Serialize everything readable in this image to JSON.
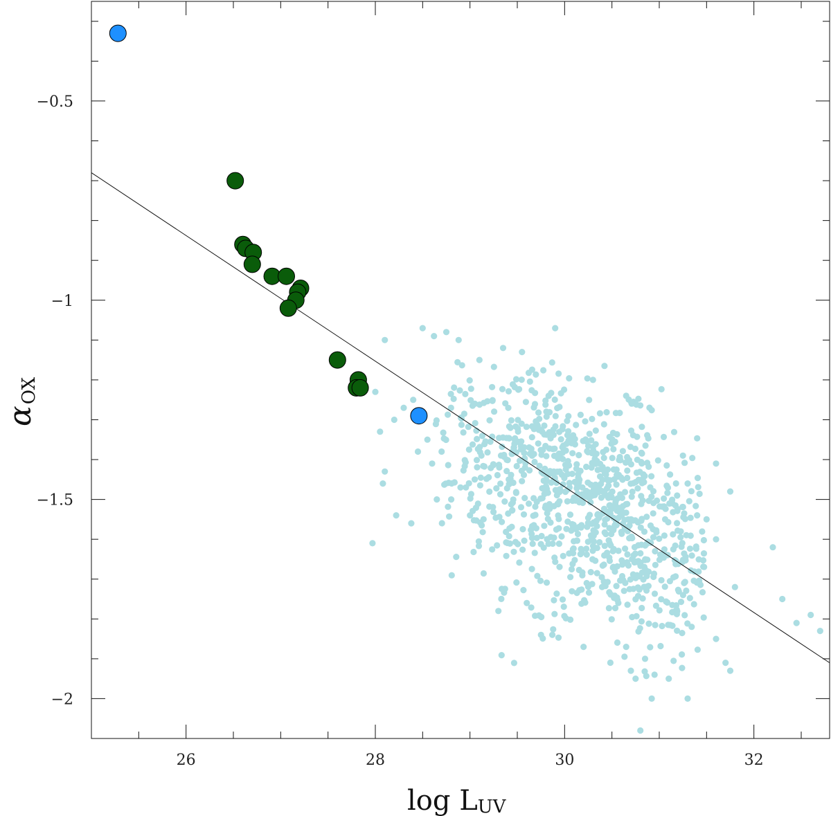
{
  "chart_data": {
    "type": "scatter",
    "xlabel": "log L",
    "xlabel_sub": "UV",
    "ylabel": "α",
    "ylabel_sub": "OX",
    "xlim": [
      25.0,
      32.8
    ],
    "ylim": [
      -2.1,
      -0.25
    ],
    "xticks_major": [
      26,
      28,
      30,
      32
    ],
    "xtick_labels": [
      "26",
      "28",
      "30",
      "32"
    ],
    "xticks_minor": [
      25.5,
      26.5,
      27,
      27.5,
      28.5,
      29,
      29.5,
      30.5,
      31,
      31.5,
      32.5
    ],
    "yticks_major": [
      -2,
      -1.5,
      -1,
      -0.5
    ],
    "ytick_labels": [
      "−2",
      "−1.5",
      "−1",
      "−0.5"
    ],
    "yticks_minor": [
      -1.9,
      -1.8,
      -1.7,
      -1.6,
      -1.4,
      -1.3,
      -1.2,
      -1.1,
      -0.9,
      -0.8,
      -0.7,
      -0.6,
      -0.4,
      -0.3
    ],
    "grid": false,
    "fit_line": {
      "x": [
        25.0,
        32.8
      ],
      "y": [
        -0.68,
        -1.91
      ]
    },
    "series": [
      {
        "marker": "large-circle",
        "color": "#0a5c0a",
        "points": [
          [
            26.52,
            -0.7
          ],
          [
            26.6,
            -0.86
          ],
          [
            26.63,
            -0.87
          ],
          [
            26.71,
            -0.88
          ],
          [
            26.7,
            -0.91
          ],
          [
            26.91,
            -0.94
          ],
          [
            27.06,
            -0.94
          ],
          [
            27.21,
            -0.97
          ],
          [
            27.18,
            -0.98
          ],
          [
            27.16,
            -1.0
          ],
          [
            27.08,
            -1.02
          ],
          [
            27.6,
            -1.15
          ],
          [
            27.82,
            -1.2
          ],
          [
            27.8,
            -1.22
          ],
          [
            27.84,
            -1.22
          ]
        ]
      },
      {
        "marker": "large-circle",
        "color": "#1e90ff",
        "points": [
          [
            25.28,
            -0.33
          ],
          [
            28.46,
            -1.29
          ]
        ]
      },
      {
        "marker": "small-dot",
        "color": "#abdde2",
        "points": [
          [
            28.5,
            -1.07
          ],
          [
            28.62,
            -1.09
          ],
          [
            28.75,
            -1.08
          ],
          [
            28.88,
            -1.1
          ],
          [
            29.1,
            -1.15
          ],
          [
            29.35,
            -1.12
          ],
          [
            29.55,
            -1.13
          ],
          [
            29.9,
            -1.07
          ],
          [
            30.3,
            -1.2
          ],
          [
            30.65,
            -1.24
          ],
          [
            28.1,
            -1.1
          ],
          [
            28.4,
            -1.25
          ],
          [
            28.3,
            -1.27
          ],
          [
            28.0,
            -1.23
          ],
          [
            28.2,
            -1.3
          ],
          [
            28.05,
            -1.33
          ],
          [
            28.45,
            -1.38
          ],
          [
            28.55,
            -1.35
          ],
          [
            28.7,
            -1.38
          ],
          [
            28.65,
            -1.5
          ],
          [
            28.9,
            -1.47
          ],
          [
            29.05,
            -1.45
          ],
          [
            29.0,
            -1.54
          ],
          [
            28.6,
            -1.41
          ],
          [
            28.1,
            -1.43
          ],
          [
            28.08,
            -1.46
          ],
          [
            28.22,
            -1.54
          ],
          [
            28.38,
            -1.56
          ],
          [
            27.97,
            -1.61
          ],
          [
            28.8,
            -1.27
          ],
          [
            29.3,
            -1.78
          ],
          [
            29.6,
            -1.76
          ],
          [
            29.75,
            -1.84
          ],
          [
            29.87,
            -1.84
          ],
          [
            30.2,
            -1.87
          ],
          [
            30.65,
            -1.87
          ],
          [
            30.85,
            -1.9
          ],
          [
            30.7,
            -1.93
          ],
          [
            30.75,
            -1.95
          ],
          [
            30.95,
            -1.94
          ],
          [
            31.1,
            -1.95
          ],
          [
            30.92,
            -2.0
          ],
          [
            30.8,
            -2.08
          ],
          [
            31.3,
            -2.0
          ],
          [
            31.6,
            -1.85
          ],
          [
            31.7,
            -1.91
          ],
          [
            31.75,
            -1.93
          ],
          [
            32.2,
            -1.62
          ],
          [
            32.3,
            -1.75
          ],
          [
            32.45,
            -1.81
          ],
          [
            32.6,
            -1.79
          ],
          [
            32.7,
            -1.83
          ],
          [
            31.75,
            -1.48
          ],
          [
            31.6,
            -1.41
          ],
          [
            31.5,
            -1.55
          ],
          [
            31.4,
            -1.54
          ],
          [
            31.8,
            -1.72
          ],
          [
            31.3,
            -1.46
          ],
          [
            31.6,
            -1.6
          ],
          [
            31.25,
            -1.39
          ]
        ]
      }
    ],
    "cloud": {
      "color": "#abdde2",
      "clusters": [
        {
          "center": [
            29.9,
            -1.45
          ],
          "spread": [
            0.55,
            0.13
          ],
          "count": 420
        },
        {
          "center": [
            30.6,
            -1.58
          ],
          "spread": [
            0.5,
            0.13
          ],
          "count": 380
        },
        {
          "center": [
            29.3,
            -1.35
          ],
          "spread": [
            0.45,
            0.12
          ],
          "count": 120
        },
        {
          "center": [
            31.1,
            -1.7
          ],
          "spread": [
            0.4,
            0.11
          ],
          "count": 110
        }
      ],
      "bounds": {
        "x": [
          28.6,
          31.5
        ],
        "y": [
          -1.95,
          -1.15
        ]
      }
    }
  }
}
